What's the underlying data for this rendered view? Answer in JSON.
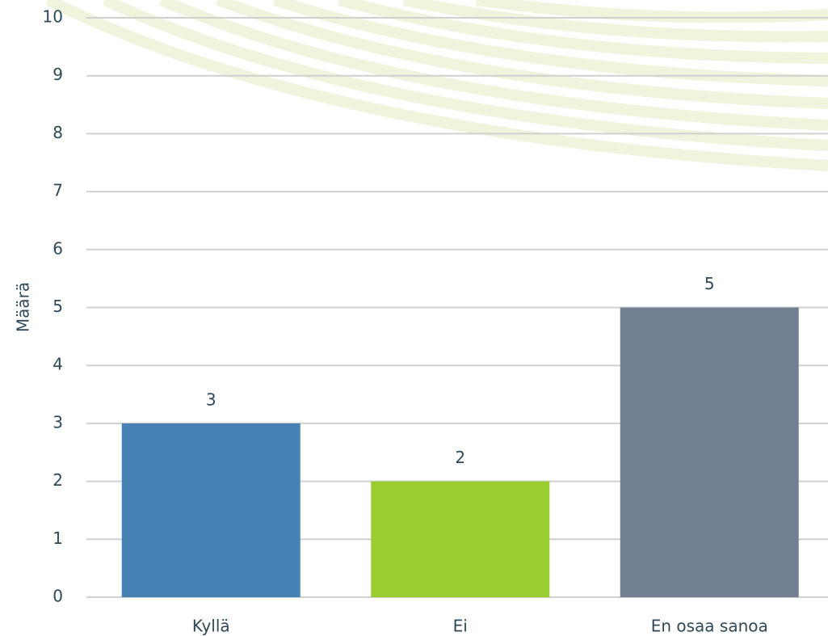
{
  "chart_data": {
    "type": "bar",
    "y_label": "Määrä",
    "categories": [
      "Kyllä",
      "Ei",
      "En osaa sanoa"
    ],
    "values": [
      3,
      2,
      5
    ],
    "colors": [
      "#4682b4",
      "#9acd32",
      "#708090"
    ],
    "ylim": [
      0,
      10
    ],
    "yticks": [
      0,
      1,
      2,
      3,
      4,
      5,
      6,
      7,
      8,
      9,
      10
    ],
    "grid": true
  }
}
